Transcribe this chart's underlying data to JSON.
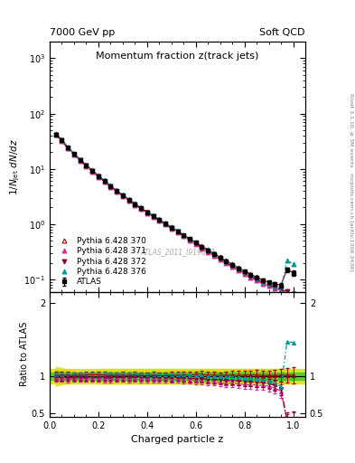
{
  "title_main": "Momentum fraction z(track jets)",
  "top_left_label": "7000 GeV pp",
  "top_right_label": "Soft QCD",
  "right_label_top": "Rivet 3.1.10, ≥ 3M events",
  "right_label_bottom": "mcplots.cern.ch [arXiv:1306.3436]",
  "watermark": "ATLAS_2011_I919017",
  "xlabel": "Charged particle z",
  "ylabel_main": "1/N$_{jet}$ dN/dz",
  "ylabel_ratio": "Ratio to ATLAS",
  "xlim": [
    0.0,
    1.05
  ],
  "ylim_main": [
    0.06,
    2000
  ],
  "z_values": [
    0.025,
    0.05,
    0.075,
    0.1,
    0.125,
    0.15,
    0.175,
    0.2,
    0.225,
    0.25,
    0.275,
    0.3,
    0.325,
    0.35,
    0.375,
    0.4,
    0.425,
    0.45,
    0.475,
    0.5,
    0.525,
    0.55,
    0.575,
    0.6,
    0.625,
    0.65,
    0.675,
    0.7,
    0.725,
    0.75,
    0.775,
    0.8,
    0.825,
    0.85,
    0.875,
    0.9,
    0.925,
    0.95,
    0.975,
    1.0
  ],
  "atlas_y": [
    42.0,
    33.0,
    24.0,
    18.5,
    14.5,
    11.5,
    9.2,
    7.4,
    6.0,
    4.9,
    4.0,
    3.3,
    2.75,
    2.3,
    1.95,
    1.65,
    1.4,
    1.2,
    1.02,
    0.87,
    0.74,
    0.63,
    0.54,
    0.46,
    0.39,
    0.34,
    0.29,
    0.25,
    0.215,
    0.185,
    0.16,
    0.14,
    0.122,
    0.108,
    0.096,
    0.088,
    0.082,
    0.078,
    0.15,
    0.13
  ],
  "atlas_yerr": [
    2.0,
    1.5,
    1.1,
    0.8,
    0.6,
    0.5,
    0.4,
    0.32,
    0.26,
    0.21,
    0.17,
    0.14,
    0.12,
    0.1,
    0.085,
    0.072,
    0.062,
    0.053,
    0.045,
    0.039,
    0.033,
    0.028,
    0.024,
    0.021,
    0.018,
    0.016,
    0.014,
    0.012,
    0.011,
    0.01,
    0.009,
    0.008,
    0.007,
    0.007,
    0.006,
    0.006,
    0.006,
    0.007,
    0.015,
    0.014
  ],
  "py370_y": [
    42.5,
    33.5,
    24.3,
    18.7,
    14.7,
    11.7,
    9.4,
    7.55,
    6.1,
    4.95,
    4.05,
    3.35,
    2.78,
    2.33,
    1.97,
    1.66,
    1.42,
    1.21,
    1.03,
    0.88,
    0.75,
    0.64,
    0.55,
    0.47,
    0.4,
    0.345,
    0.295,
    0.252,
    0.218,
    0.188,
    0.162,
    0.142,
    0.124,
    0.11,
    0.097,
    0.089,
    0.083,
    0.079,
    0.152,
    0.132
  ],
  "py371_y": [
    41.0,
    32.0,
    23.2,
    17.9,
    14.0,
    11.1,
    8.9,
    7.15,
    5.78,
    4.72,
    3.86,
    3.19,
    2.65,
    2.22,
    1.88,
    1.59,
    1.35,
    1.15,
    0.98,
    0.83,
    0.71,
    0.6,
    0.51,
    0.43,
    0.365,
    0.315,
    0.268,
    0.228,
    0.195,
    0.168,
    0.144,
    0.124,
    0.108,
    0.095,
    0.084,
    0.076,
    0.069,
    0.062,
    0.058,
    0.052
  ],
  "py372_y": [
    41.5,
    32.5,
    23.5,
    18.1,
    14.2,
    11.3,
    9.05,
    7.28,
    5.88,
    4.8,
    3.93,
    3.25,
    2.7,
    2.27,
    1.92,
    1.62,
    1.38,
    1.175,
    1.0,
    0.85,
    0.725,
    0.615,
    0.524,
    0.445,
    0.378,
    0.325,
    0.277,
    0.237,
    0.202,
    0.174,
    0.15,
    0.13,
    0.113,
    0.099,
    0.088,
    0.079,
    0.072,
    0.065,
    0.061,
    0.054
  ],
  "py376_y": [
    43.0,
    34.0,
    24.8,
    19.1,
    15.0,
    11.9,
    9.55,
    7.68,
    6.2,
    5.06,
    4.14,
    3.42,
    2.84,
    2.38,
    2.01,
    1.7,
    1.44,
    1.23,
    1.045,
    0.89,
    0.76,
    0.645,
    0.55,
    0.468,
    0.398,
    0.342,
    0.292,
    0.25,
    0.214,
    0.184,
    0.158,
    0.137,
    0.119,
    0.104,
    0.091,
    0.082,
    0.074,
    0.067,
    0.22,
    0.19
  ],
  "atlas_color": "#000000",
  "py370_color": "#aa0000",
  "py371_color": "#cc3399",
  "py372_color": "#880033",
  "py376_color": "#009999",
  "band_green": "#33cc33",
  "band_yellow": "#dddd00",
  "ratio_ylim": [
    0.45,
    2.15
  ],
  "ratio_yticks": [
    0.5,
    1.0,
    2.0
  ],
  "ratio_yticklabels": [
    "0.5",
    "1",
    "2"
  ],
  "legend_labels": [
    "ATLAS",
    "Pythia 6.428 370",
    "Pythia 6.428 371",
    "Pythia 6.428 372",
    "Pythia 6.428 376"
  ]
}
